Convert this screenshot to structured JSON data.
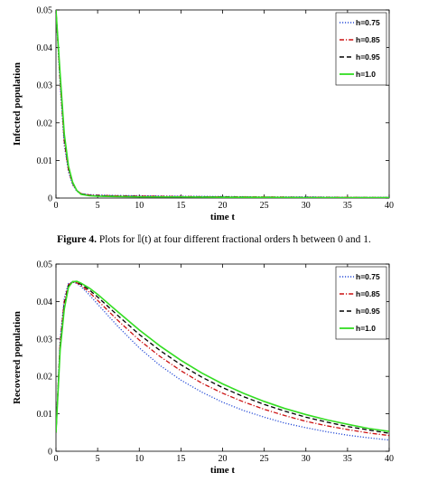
{
  "caption": {
    "label": "Figure 4.",
    "text": "Plots for 𝕀(t) at four different fractional orders ħ between 0 and 1."
  },
  "chart_data": [
    {
      "type": "line",
      "xlabel": "time t",
      "ylabel": "Infected population",
      "xlim": [
        0,
        40
      ],
      "ylim": [
        0,
        0.05
      ],
      "xticks": [
        "0",
        "5",
        "10",
        "15",
        "20",
        "25",
        "30",
        "35",
        "40"
      ],
      "yticks": [
        "0",
        "0.01",
        "0.02",
        "0.03",
        "0.04",
        "0.05"
      ],
      "legend_position": "top-right",
      "series": [
        {
          "name": "h=0.75",
          "color": "#2a4fd8",
          "dash": "dotted",
          "x": [
            0,
            0.5,
            1,
            1.5,
            2,
            2.5,
            3,
            4,
            5,
            7,
            10,
            15,
            20,
            25,
            30,
            35,
            40
          ],
          "y": [
            0.05,
            0.03,
            0.014,
            0.007,
            0.0035,
            0.0018,
            0.0012,
            0.0009,
            0.0008,
            0.0007,
            0.0006,
            0.0005,
            0.0004,
            0.0003,
            0.0003,
            0.0002,
            0.0002
          ]
        },
        {
          "name": "h=0.85",
          "color": "#cc1111",
          "dash": "dashdot",
          "x": [
            0,
            0.5,
            1,
            1.5,
            2,
            2.5,
            3,
            4,
            5,
            7,
            10,
            15,
            20,
            25,
            30,
            35,
            40
          ],
          "y": [
            0.05,
            0.031,
            0.015,
            0.0075,
            0.0038,
            0.002,
            0.0012,
            0.0008,
            0.0007,
            0.0006,
            0.0005,
            0.0004,
            0.0003,
            0.0003,
            0.0002,
            0.0002,
            0.0001
          ]
        },
        {
          "name": "h=0.95",
          "color": "#000000",
          "dash": "dashed",
          "x": [
            0,
            0.5,
            1,
            1.5,
            2,
            2.5,
            3,
            4,
            5,
            7,
            10,
            15,
            20,
            25,
            30,
            35,
            40
          ],
          "y": [
            0.05,
            0.032,
            0.016,
            0.008,
            0.004,
            0.002,
            0.0011,
            0.0007,
            0.0006,
            0.0005,
            0.0004,
            0.0003,
            0.0003,
            0.0002,
            0.0002,
            0.0001,
            0.0001
          ]
        },
        {
          "name": "h=1.0",
          "color": "#33dd22",
          "dash": "solid",
          "x": [
            0,
            0.5,
            1,
            1.5,
            2,
            2.5,
            3,
            4,
            5,
            7,
            10,
            15,
            20,
            25,
            30,
            35,
            40
          ],
          "y": [
            0.05,
            0.033,
            0.017,
            0.0085,
            0.0042,
            0.002,
            0.001,
            0.0006,
            0.0005,
            0.0004,
            0.0003,
            0.0003,
            0.0002,
            0.0002,
            0.0001,
            0.0001,
            0.0001
          ]
        }
      ]
    },
    {
      "type": "line",
      "xlabel": "time t",
      "ylabel": "Recovered population",
      "xlim": [
        0,
        40
      ],
      "ylim": [
        0,
        0.05
      ],
      "xticks": [
        "0",
        "5",
        "10",
        "15",
        "20",
        "25",
        "30",
        "35",
        "40"
      ],
      "yticks": [
        "0",
        "0.01",
        "0.02",
        "0.03",
        "0.04",
        "0.05"
      ],
      "legend_position": "top-right",
      "series": [
        {
          "name": "h=0.75",
          "color": "#2a4fd8",
          "dash": "dotted",
          "x": [
            0,
            0.5,
            1,
            1.5,
            2,
            2.5,
            3,
            4,
            5,
            7.5,
            10,
            12.5,
            15,
            17.5,
            20,
            22.5,
            25,
            27.5,
            30,
            32.5,
            35,
            37.5,
            40
          ],
          "y": [
            0.005,
            0.03,
            0.041,
            0.0448,
            0.0452,
            0.0448,
            0.044,
            0.0418,
            0.0393,
            0.0332,
            0.0276,
            0.0229,
            0.019,
            0.0158,
            0.0131,
            0.0109,
            0.0091,
            0.0075,
            0.0063,
            0.0052,
            0.0043,
            0.0036,
            0.003
          ]
        },
        {
          "name": "h=0.85",
          "color": "#cc1111",
          "dash": "dashdot",
          "x": [
            0,
            0.5,
            1,
            1.5,
            2,
            2.5,
            3,
            4,
            5,
            7.5,
            10,
            12.5,
            15,
            17.5,
            20,
            22.5,
            25,
            27.5,
            30,
            32.5,
            35,
            37.5,
            40
          ],
          "y": [
            0.005,
            0.029,
            0.04,
            0.0445,
            0.0452,
            0.045,
            0.0443,
            0.0425,
            0.0403,
            0.0348,
            0.0297,
            0.0253,
            0.0215,
            0.0182,
            0.0155,
            0.0132,
            0.0112,
            0.0095,
            0.008,
            0.0068,
            0.0058,
            0.0049,
            0.0042
          ]
        },
        {
          "name": "h=0.95",
          "color": "#000000",
          "dash": "dashed",
          "x": [
            0,
            0.5,
            1,
            1.5,
            2,
            2.5,
            3,
            4,
            5,
            7.5,
            10,
            12.5,
            15,
            17.5,
            20,
            22.5,
            25,
            27.5,
            30,
            32.5,
            35,
            37.5,
            40
          ],
          "y": [
            0.005,
            0.028,
            0.039,
            0.0442,
            0.0453,
            0.0452,
            0.0446,
            0.0431,
            0.0412,
            0.0361,
            0.0312,
            0.0269,
            0.0231,
            0.0198,
            0.017,
            0.0146,
            0.0125,
            0.0107,
            0.0091,
            0.0078,
            0.0066,
            0.0057,
            0.0048
          ]
        },
        {
          "name": "h=1.0",
          "color": "#33dd22",
          "dash": "solid",
          "x": [
            0,
            0.5,
            1,
            1.5,
            2,
            2.5,
            3,
            4,
            5,
            7.5,
            10,
            12.5,
            15,
            17.5,
            20,
            22.5,
            25,
            27.5,
            30,
            32.5,
            35,
            37.5,
            40
          ],
          "y": [
            0.005,
            0.027,
            0.038,
            0.0438,
            0.0453,
            0.0454,
            0.0449,
            0.0436,
            0.0419,
            0.0371,
            0.0324,
            0.0281,
            0.0243,
            0.0209,
            0.018,
            0.0155,
            0.0133,
            0.0114,
            0.0098,
            0.0084,
            0.0072,
            0.0061,
            0.0053
          ]
        }
      ]
    }
  ]
}
